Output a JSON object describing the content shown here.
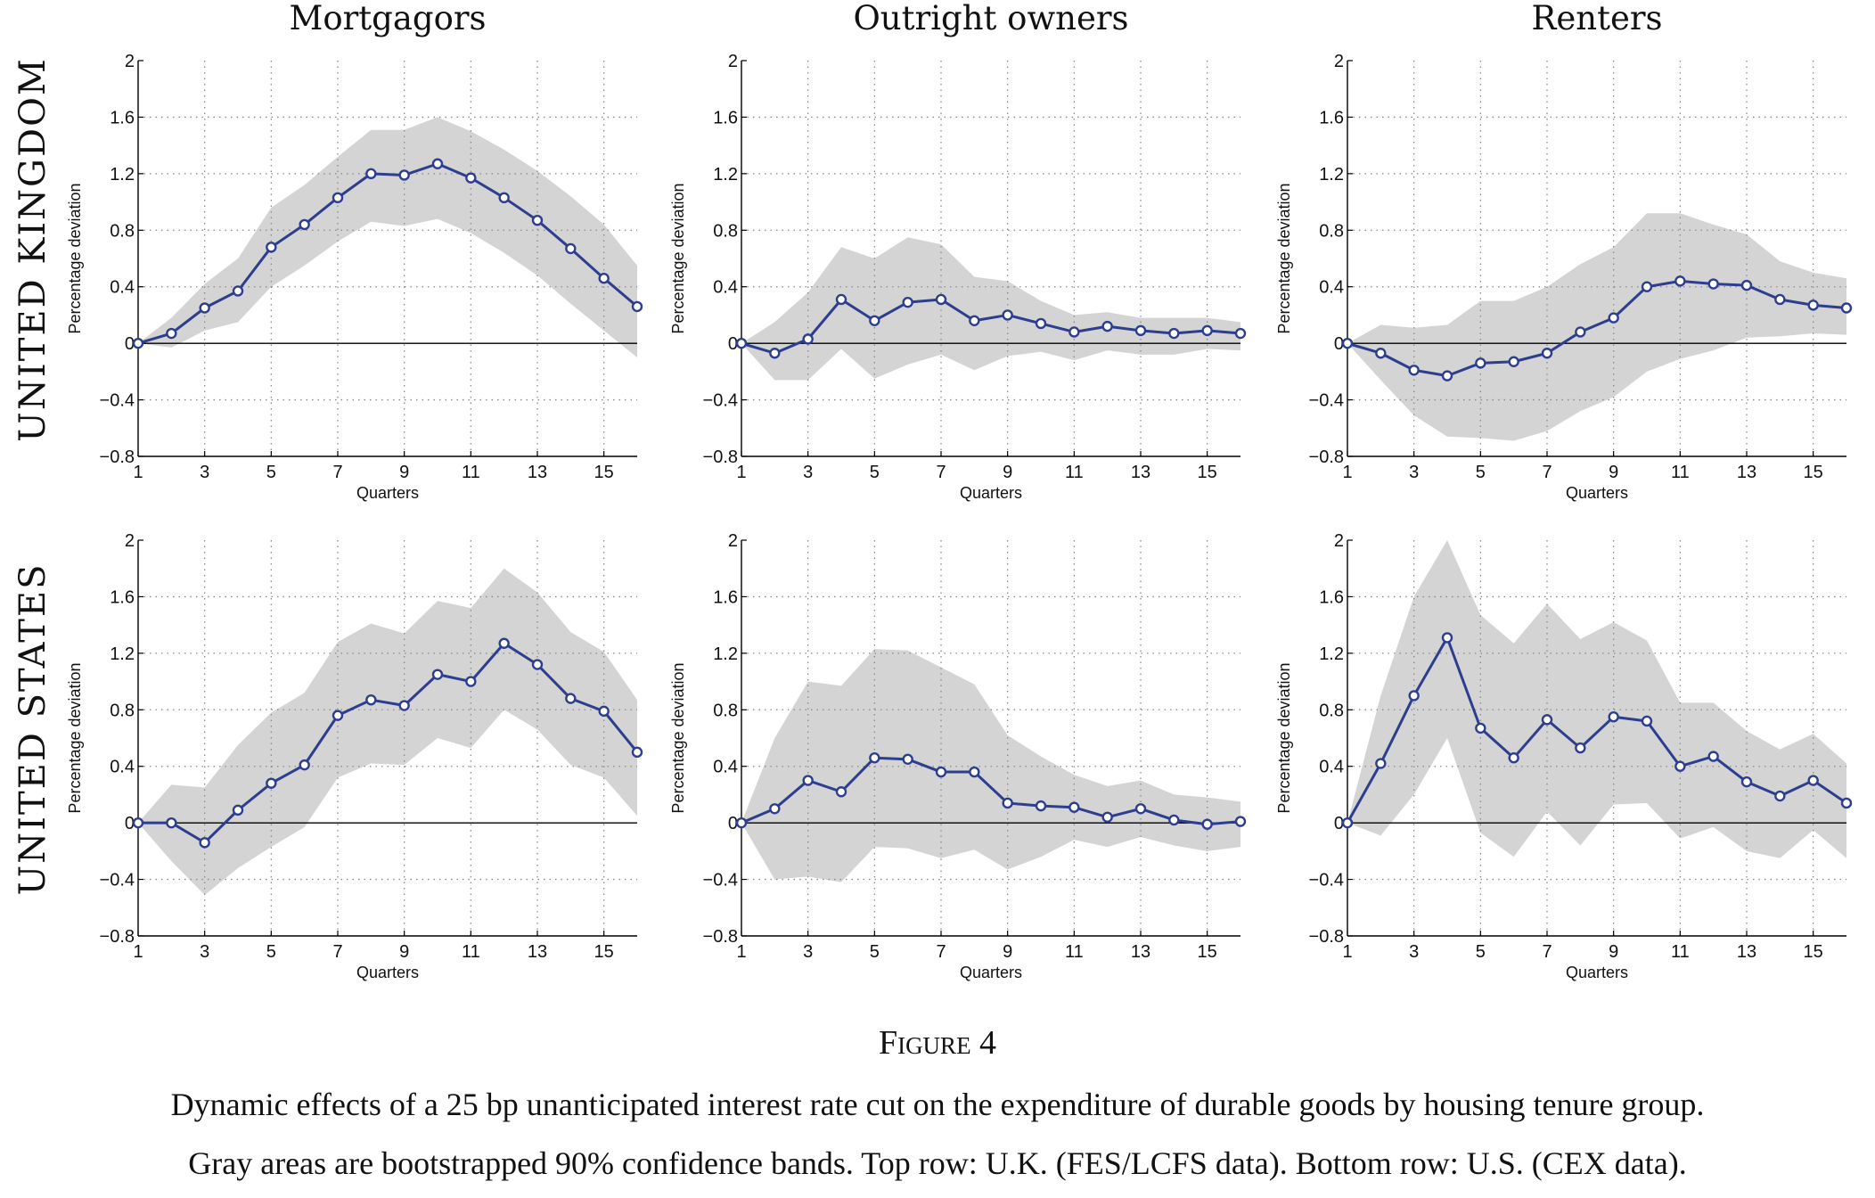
{
  "figure": {
    "label": "Figure 4",
    "caption_line1": "Dynamic effects of a 25 bp unanticipated interest rate cut on the expenditure of durable goods by housing tenure group.",
    "caption_line2": "Gray areas are bootstrapped 90% confidence bands. Top row: U.K. (FES/LCFS data). Bottom row: U.S. (CEX data)."
  },
  "columns": [
    "Mortgagors",
    "Outright owners",
    "Renters"
  ],
  "rows": [
    "UNITED KINGDOM",
    "UNITED STATES"
  ],
  "colors": {
    "line": "#2d3e8f",
    "band": "#d4d4d4",
    "grid": "#888888",
    "zero": "#000000"
  },
  "axes": {
    "xlabel": "Quarters",
    "ylabel": "Percentage deviation",
    "xlim": [
      1,
      16
    ],
    "ylim": [
      -0.8,
      2
    ],
    "xticks": [
      1,
      3,
      5,
      7,
      9,
      11,
      13,
      15
    ],
    "yticks": [
      -0.8,
      -0.4,
      0,
      0.4,
      0.8,
      1.2,
      1.6,
      2
    ],
    "ytick_labels": [
      "−0.8",
      "−0.4",
      "0",
      "0.4",
      "0.8",
      "1.2",
      "1.6",
      "2"
    ],
    "grid": true
  },
  "chart_data": [
    {
      "type": "line",
      "row": "UNITED KINGDOM",
      "title": "Mortgagors",
      "x": [
        1,
        2,
        3,
        4,
        5,
        6,
        7,
        8,
        9,
        10,
        11,
        12,
        13,
        14,
        15,
        16
      ],
      "values": [
        0,
        0.07,
        0.25,
        0.37,
        0.68,
        0.84,
        1.03,
        1.2,
        1.19,
        1.27,
        1.17,
        1.03,
        0.87,
        0.67,
        0.46,
        0.26
      ],
      "upper": [
        0,
        0.18,
        0.42,
        0.6,
        0.96,
        1.12,
        1.32,
        1.51,
        1.51,
        1.6,
        1.5,
        1.37,
        1.22,
        1.04,
        0.84,
        0.55
      ],
      "lower": [
        0,
        -0.03,
        0.09,
        0.15,
        0.4,
        0.55,
        0.72,
        0.86,
        0.83,
        0.88,
        0.78,
        0.64,
        0.48,
        0.28,
        0.09,
        -0.1
      ]
    },
    {
      "type": "line",
      "row": "UNITED KINGDOM",
      "title": "Outright owners",
      "x": [
        1,
        2,
        3,
        4,
        5,
        6,
        7,
        8,
        9,
        10,
        11,
        12,
        13,
        14,
        15,
        16
      ],
      "values": [
        0,
        -0.07,
        0.03,
        0.31,
        0.16,
        0.29,
        0.31,
        0.16,
        0.2,
        0.14,
        0.08,
        0.12,
        0.09,
        0.07,
        0.09,
        0.07
      ],
      "upper": [
        0,
        0.15,
        0.36,
        0.68,
        0.6,
        0.75,
        0.7,
        0.47,
        0.44,
        0.3,
        0.2,
        0.22,
        0.18,
        0.18,
        0.18,
        0.15
      ],
      "lower": [
        0,
        -0.26,
        -0.26,
        -0.04,
        -0.25,
        -0.15,
        -0.08,
        -0.19,
        -0.09,
        -0.06,
        -0.12,
        -0.05,
        -0.08,
        -0.08,
        -0.04,
        -0.05
      ]
    },
    {
      "type": "line",
      "row": "UNITED KINGDOM",
      "title": "Renters",
      "x": [
        1,
        2,
        3,
        4,
        5,
        6,
        7,
        8,
        9,
        10,
        11,
        12,
        13,
        14,
        15,
        16
      ],
      "values": [
        0,
        -0.07,
        -0.19,
        -0.23,
        -0.14,
        -0.13,
        -0.07,
        0.08,
        0.18,
        0.4,
        0.44,
        0.42,
        0.41,
        0.31,
        0.27,
        0.25
      ],
      "upper": [
        0,
        0.13,
        0.11,
        0.13,
        0.3,
        0.3,
        0.4,
        0.56,
        0.68,
        0.92,
        0.92,
        0.84,
        0.77,
        0.58,
        0.5,
        0.46
      ],
      "lower": [
        0,
        -0.26,
        -0.51,
        -0.66,
        -0.67,
        -0.69,
        -0.62,
        -0.48,
        -0.38,
        -0.2,
        -0.11,
        -0.05,
        0.04,
        0.05,
        0.07,
        0.06
      ]
    },
    {
      "type": "line",
      "row": "UNITED STATES",
      "title": "Mortgagors",
      "x": [
        1,
        2,
        3,
        4,
        5,
        6,
        7,
        8,
        9,
        10,
        11,
        12,
        13,
        14,
        15,
        16
      ],
      "values": [
        0,
        0,
        -0.14,
        0.09,
        0.28,
        0.41,
        0.76,
        0.87,
        0.83,
        1.05,
        1.0,
        1.27,
        1.12,
        0.88,
        0.79,
        0.5
      ],
      "upper": [
        0,
        0.27,
        0.25,
        0.55,
        0.78,
        0.92,
        1.28,
        1.41,
        1.34,
        1.57,
        1.52,
        1.8,
        1.63,
        1.35,
        1.21,
        0.87
      ],
      "lower": [
        0,
        -0.27,
        -0.51,
        -0.32,
        -0.17,
        -0.03,
        0.32,
        0.42,
        0.41,
        0.6,
        0.53,
        0.8,
        0.66,
        0.41,
        0.32,
        0.05
      ]
    },
    {
      "type": "line",
      "row": "UNITED STATES",
      "title": "Outright owners",
      "x": [
        1,
        2,
        3,
        4,
        5,
        6,
        7,
        8,
        9,
        10,
        11,
        12,
        13,
        14,
        15,
        16
      ],
      "values": [
        0,
        0.1,
        0.3,
        0.22,
        0.46,
        0.45,
        0.36,
        0.36,
        0.14,
        0.12,
        0.11,
        0.04,
        0.1,
        0.02,
        -0.01,
        0.01
      ],
      "upper": [
        0,
        0.6,
        1.0,
        0.97,
        1.23,
        1.22,
        1.1,
        0.98,
        0.62,
        0.47,
        0.34,
        0.26,
        0.3,
        0.2,
        0.18,
        0.15
      ],
      "lower": [
        0,
        -0.4,
        -0.38,
        -0.42,
        -0.17,
        -0.18,
        -0.25,
        -0.19,
        -0.33,
        -0.24,
        -0.12,
        -0.17,
        -0.1,
        -0.16,
        -0.2,
        -0.17
      ]
    },
    {
      "type": "line",
      "row": "UNITED STATES",
      "title": "Renters",
      "x": [
        1,
        2,
        3,
        4,
        5,
        6,
        7,
        8,
        9,
        10,
        11,
        12,
        13,
        14,
        15,
        16
      ],
      "values": [
        0,
        0.42,
        0.9,
        1.31,
        0.67,
        0.46,
        0.73,
        0.53,
        0.75,
        0.72,
        0.4,
        0.47,
        0.29,
        0.19,
        0.3,
        0.14
      ],
      "upper": [
        0,
        0.9,
        1.6,
        2.0,
        1.47,
        1.27,
        1.55,
        1.3,
        1.42,
        1.29,
        0.85,
        0.85,
        0.65,
        0.52,
        0.63,
        0.42
      ],
      "lower": [
        0,
        -0.09,
        0.2,
        0.6,
        -0.07,
        -0.24,
        0.08,
        -0.16,
        0.13,
        0.14,
        -0.11,
        -0.03,
        -0.2,
        -0.25,
        -0.05,
        -0.25
      ]
    }
  ]
}
